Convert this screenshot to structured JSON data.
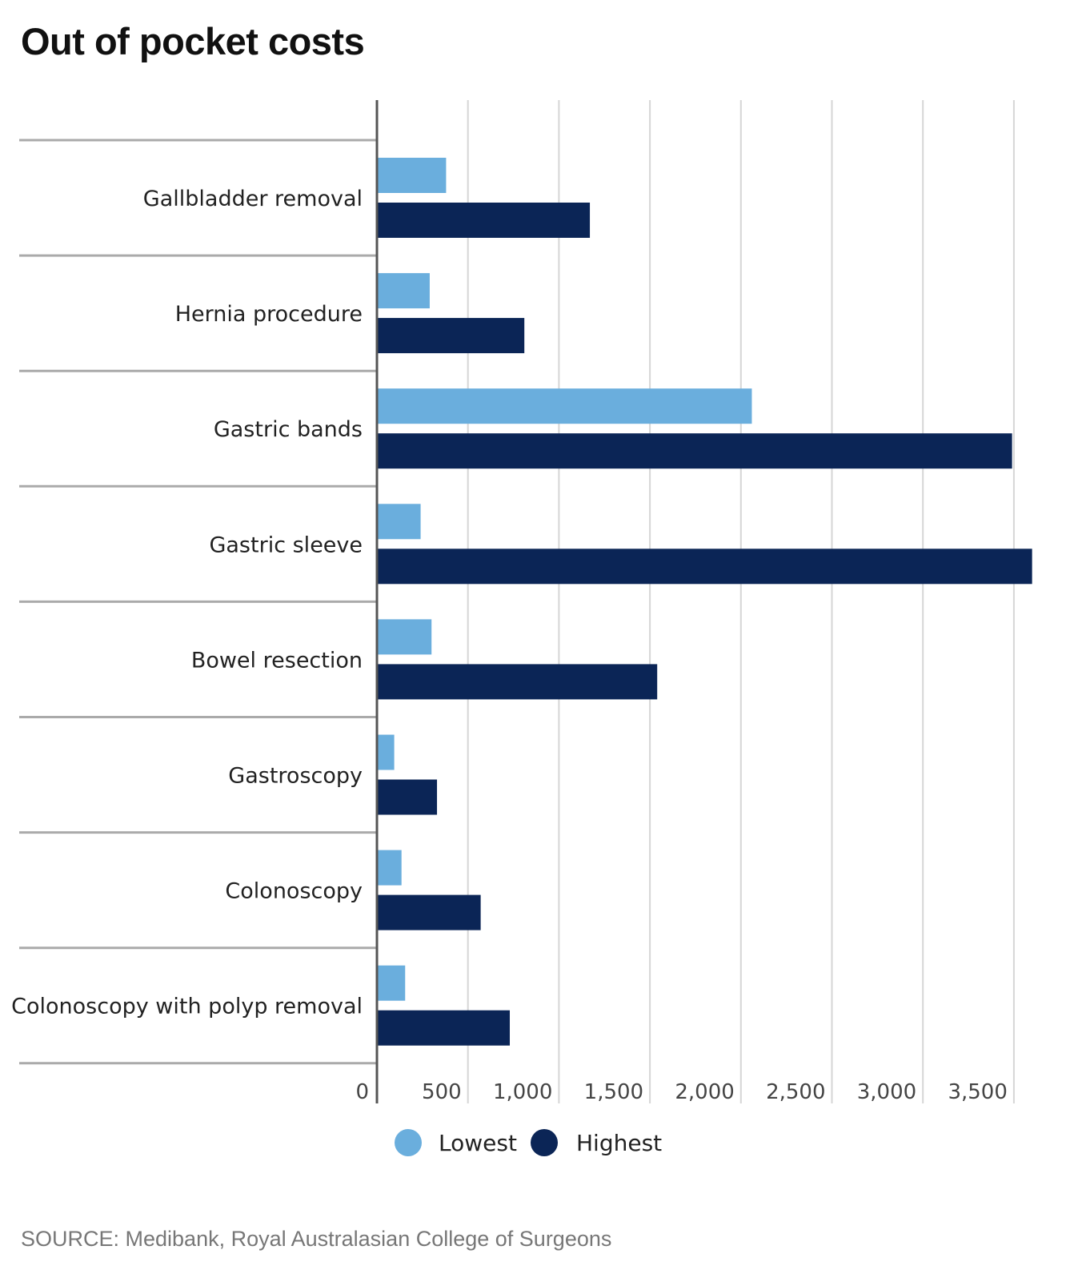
{
  "title": "Out of pocket costs",
  "source": "SOURCE: Medibank, Royal Australasian College of Surgeons",
  "colors": {
    "lowest": "#6aaedd",
    "highest": "#0b2556",
    "grid": "#d6d6d6",
    "axis": "#555555",
    "separator": "#aaaaaa"
  },
  "chart_data": {
    "type": "bar",
    "orientation": "horizontal",
    "title": "Out of pocket costs",
    "categories": [
      "Gallbladder removal",
      "Hernia procedure",
      "Gastric bands",
      "Gastric sleeve",
      "Bowel resection",
      "Gastroscopy",
      "Colonoscopy",
      "Colonoscopy with polyp removal"
    ],
    "series": [
      {
        "name": "Lowest",
        "values": [
          380,
          290,
          2060,
          240,
          300,
          95,
          135,
          155
        ]
      },
      {
        "name": "Highest",
        "values": [
          1170,
          810,
          3490,
          3600,
          1540,
          330,
          570,
          730
        ]
      }
    ],
    "xticks": [
      0,
      500,
      1000,
      1500,
      2000,
      2500,
      3000,
      3500
    ],
    "xtick_labels": [
      "0",
      "500",
      "1,000",
      "1,500",
      "2,000",
      "2,500",
      "3,000",
      "3,500"
    ],
    "xlim": [
      0,
      3600
    ],
    "legend": "bottom",
    "grid": true
  }
}
